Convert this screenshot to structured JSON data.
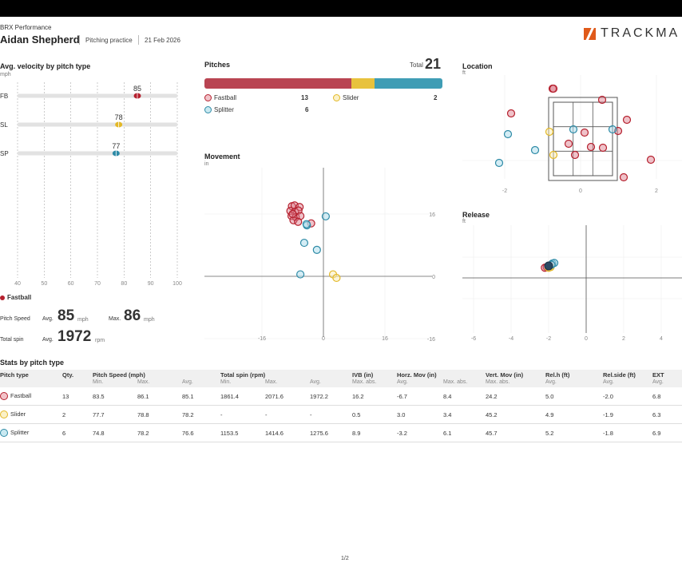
{
  "header": {
    "org": "BRX Performance",
    "player": "Aidan Shepherd",
    "session": "Pitching practice",
    "date": "21 Feb 2026",
    "logo_text": "TRACKMA"
  },
  "colors": {
    "fastball": "#b5202e",
    "slider": "#e3b826",
    "splitter": "#2d8aa6"
  },
  "velocity": {
    "title": "Avg. velocity by pitch type",
    "unit": "mph",
    "x_ticks": [
      "40",
      "50",
      "60",
      "70",
      "80",
      "90",
      "100"
    ],
    "rows": [
      {
        "label": "FB",
        "value": "85"
      },
      {
        "label": "SL",
        "value": "78"
      },
      {
        "label": "SP",
        "value": "77"
      }
    ]
  },
  "pitches": {
    "title": "Pitches",
    "total_label": "Total",
    "total": "21",
    "legend": [
      {
        "name": "Fastball",
        "count": "13"
      },
      {
        "name": "Slider",
        "count": "2"
      },
      {
        "name": "Splitter",
        "count": "6"
      }
    ]
  },
  "movement": {
    "title": "Movement",
    "unit": "in",
    "x_ticks": [
      "-16",
      "0",
      "16"
    ],
    "y_ticks": [
      "16",
      "0",
      "-16"
    ]
  },
  "location": {
    "title": "Location",
    "unit": "ft",
    "x_ticks": [
      "-2",
      "0",
      "2"
    ]
  },
  "release": {
    "title": "Release",
    "unit": "ft",
    "x_ticks": [
      "-6",
      "-4",
      "-2",
      "0",
      "2",
      "4"
    ]
  },
  "summary": {
    "pitch_type": "Fastball",
    "speed_label": "Pitch Speed",
    "spin_label": "Total spin",
    "avg_label": "Avg.",
    "max_label": "Max.",
    "speed_avg": "85",
    "speed_max": "86",
    "speed_unit": "mph",
    "spin_avg": "1972",
    "spin_unit": "rpm"
  },
  "stats": {
    "title": "Stats by pitch type",
    "headers": [
      "Pitch type",
      "Qty.",
      "Pitch Speed (mph)",
      "Total spin (rpm)",
      "IVB (in)",
      "Horz. Mov (in)",
      "Vert. Mov (in)",
      "Rel.h (ft)",
      "Rel.side (ft)",
      "EXT"
    ],
    "sub": [
      "Min.",
      "Max.",
      "Avg.",
      "Min.",
      "Max.",
      "Avg.",
      "Max. abs.",
      "Avg.",
      "Max. abs.",
      "Max. abs.",
      "Avg.",
      "Avg.",
      "Avg."
    ],
    "rows": [
      {
        "type": "Fastball",
        "qty": "13",
        "cells": [
          "83.5",
          "86.1",
          "85.1",
          "1861.4",
          "2071.6",
          "1972.2",
          "16.2",
          "-6.7",
          "8.4",
          "24.2",
          "5.0",
          "-2.0",
          "6.8"
        ]
      },
      {
        "type": "Slider",
        "qty": "2",
        "cells": [
          "77.7",
          "78.8",
          "78.2",
          "-",
          "-",
          "-",
          "0.5",
          "3.0",
          "3.4",
          "45.2",
          "4.9",
          "-1.9",
          "6.3"
        ]
      },
      {
        "type": "Splitter",
        "qty": "6",
        "cells": [
          "74.8",
          "78.2",
          "76.6",
          "1153.5",
          "1414.6",
          "1275.6",
          "8.9",
          "-3.2",
          "6.1",
          "45.7",
          "5.2",
          "-1.8",
          "6.9"
        ]
      }
    ]
  },
  "footer": {
    "page": "1/2"
  }
}
